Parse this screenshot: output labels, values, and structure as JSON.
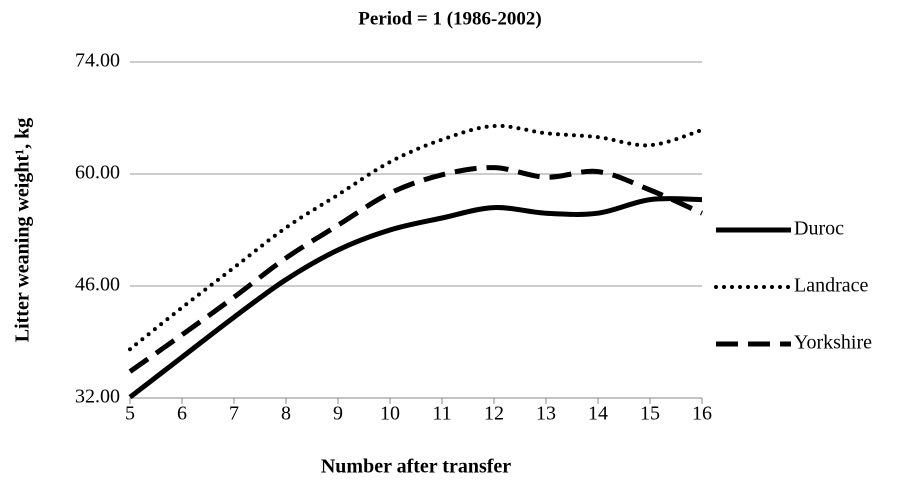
{
  "chart_data": {
    "type": "line",
    "title": "Period = 1 (1986-2002)",
    "x_label": "Number after transfer",
    "y_label": "Litter weaning weight¹, kg",
    "x": [
      5,
      6,
      7,
      8,
      9,
      10,
      11,
      12,
      13,
      14,
      15,
      16
    ],
    "xlim": [
      5,
      16
    ],
    "xticks": [
      5,
      6,
      7,
      8,
      9,
      10,
      11,
      12,
      13,
      14,
      15,
      16
    ],
    "ylim": [
      32,
      74
    ],
    "yticks": [
      {
        "value": 32,
        "label": "32.00"
      },
      {
        "value": 46,
        "label": "46.00"
      },
      {
        "value": 60,
        "label": "60.00"
      },
      {
        "value": 74,
        "label": "74.00"
      }
    ],
    "grid": true,
    "legend": "right",
    "series": [
      {
        "name": "Duroc",
        "color": "#000000",
        "style": "solid",
        "values": [
          32.1,
          37.1,
          42.1,
          46.8,
          50.5,
          53,
          54.5,
          55.8,
          55.1,
          55.1,
          56.8,
          56.8
        ]
      },
      {
        "name": "Landrace",
        "color": "#000000",
        "style": "dotted",
        "values": [
          38.1,
          43.3,
          48.3,
          53.3,
          57.4,
          61.5,
          64.3,
          66,
          65.1,
          64.6,
          63.6,
          65.5
        ]
      },
      {
        "name": "Yorkshire",
        "color": "#000000",
        "style": "dashed",
        "values": [
          35.3,
          39.9,
          44.6,
          49.5,
          53.6,
          57.6,
          59.9,
          60.8,
          59.6,
          60.3,
          58,
          55.1
        ]
      }
    ]
  }
}
